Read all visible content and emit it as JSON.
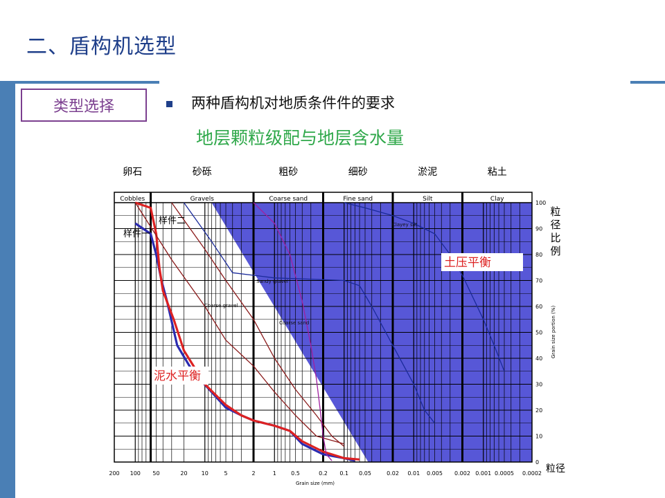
{
  "title": "二、盾构机选型",
  "type_box_label": "类型选择",
  "requirement_text": "两种盾构机对地质条件件的要求",
  "subtitle": "地层颗粒级配与地层含水量",
  "colors": {
    "accent_blue": "#4a7fb5",
    "title_blue": "#1f3f8a",
    "subtitle_green": "#2fa84a",
    "box_purple": "#7b3f8f",
    "epb_fill": "#3a3ad0"
  },
  "chart_data": {
    "type": "line",
    "categories_cn": [
      "卵石",
      "砂砾",
      "粗砂",
      "细砂",
      "淤泥",
      "粘土"
    ],
    "categories_en": [
      "Cobbles",
      "Gravels",
      "Coarse sand",
      "Fine sand",
      "Silt",
      "Clay"
    ],
    "x_ticks": [
      "200",
      "100",
      "50",
      "20",
      "10",
      "5",
      "2",
      "1",
      "0.5",
      "0.2",
      "0.1",
      "0.05",
      "0.02",
      "0.01",
      "0.005",
      "0.002",
      "0.001",
      "0.0005",
      "0.0002"
    ],
    "xlabel": "Grain size (mm)",
    "xlabel_cn": "粒径",
    "x_scale": "log",
    "y_ticks": [
      "0",
      "10",
      "20",
      "30",
      "40",
      "50",
      "60",
      "70",
      "80",
      "90",
      "100"
    ],
    "ylabel": "Grain size portion (%)",
    "ylabel_cn": "粒径比例",
    "ylim": [
      0,
      100
    ],
    "grid": true,
    "region_labels": {
      "epb": "土压平衡",
      "slurry": "泥水平衡"
    },
    "series": [
      {
        "name": "样件一",
        "color": "#2b2bb0",
        "points": [
          [
            100,
            92
          ],
          [
            60,
            88
          ],
          [
            50,
            80
          ],
          [
            42,
            70
          ],
          [
            35,
            62
          ],
          [
            25,
            45
          ],
          [
            15,
            35
          ],
          [
            8,
            27
          ],
          [
            5,
            21
          ],
          [
            3,
            18
          ],
          [
            2,
            16
          ],
          [
            1,
            14
          ],
          [
            0.6,
            12
          ],
          [
            0.4,
            7
          ],
          [
            0.2,
            3
          ],
          [
            0.1,
            1.5
          ],
          [
            0.07,
            0.5
          ]
        ]
      },
      {
        "name": "样件二",
        "color": "#dd2222",
        "points": [
          [
            100,
            100
          ],
          [
            60,
            98
          ],
          [
            50,
            88
          ],
          [
            45,
            75
          ],
          [
            40,
            66
          ],
          [
            28,
            55
          ],
          [
            20,
            43
          ],
          [
            10,
            30
          ],
          [
            5,
            22
          ],
          [
            3,
            18
          ],
          [
            2,
            16
          ],
          [
            1,
            14
          ],
          [
            0.6,
            12
          ],
          [
            0.4,
            8
          ],
          [
            0.2,
            4
          ],
          [
            0.1,
            1.5
          ],
          [
            0.06,
            1
          ]
        ]
      },
      {
        "name": "",
        "color": "#8a1a1a",
        "points": [
          [
            100,
            100
          ],
          [
            30,
            78
          ],
          [
            10,
            60
          ],
          [
            5,
            47
          ],
          [
            2,
            37
          ],
          [
            1,
            27
          ],
          [
            0.5,
            18
          ],
          [
            0.25,
            10
          ],
          [
            0.1,
            7
          ]
        ]
      },
      {
        "name": "",
        "color": "#8a1a1a",
        "points": [
          [
            30,
            100
          ],
          [
            10,
            82
          ],
          [
            5,
            70
          ],
          [
            2,
            55
          ],
          [
            1,
            40
          ],
          [
            0.5,
            28
          ],
          [
            0.25,
            18
          ],
          [
            0.15,
            10
          ],
          [
            0.1,
            6
          ]
        ]
      },
      {
        "name": "",
        "color": "#a020a0",
        "points": [
          [
            2,
            100
          ],
          [
            1,
            92
          ],
          [
            0.6,
            80
          ],
          [
            0.4,
            62
          ],
          [
            0.3,
            45
          ],
          [
            0.25,
            32
          ],
          [
            0.22,
            20
          ],
          [
            0.2,
            10
          ],
          [
            0.18,
            3
          ],
          [
            0.15,
            0.5
          ]
        ]
      },
      {
        "name": "",
        "color": "#1a2a9a",
        "points": [
          [
            20,
            100
          ],
          [
            8,
            85
          ],
          [
            4,
            73
          ],
          [
            1,
            71
          ],
          [
            0.3,
            70.5
          ],
          [
            0.1,
            70
          ],
          [
            0.06,
            68
          ],
          [
            0.04,
            60
          ],
          [
            0.02,
            45
          ],
          [
            0.01,
            30
          ],
          [
            0.007,
            20
          ],
          [
            0.005,
            15
          ]
        ]
      },
      {
        "name": "",
        "color": "#1a2a9a",
        "points": [
          [
            0.1,
            100
          ],
          [
            0.05,
            98
          ],
          [
            0.02,
            95
          ],
          [
            0.01,
            92
          ],
          [
            0.005,
            88
          ],
          [
            0.003,
            80
          ],
          [
            0.002,
            72
          ],
          [
            0.001,
            55
          ],
          [
            0.0007,
            45
          ],
          [
            0.0005,
            35
          ]
        ]
      }
    ],
    "annotations": [
      "Clayey silt",
      "Sandy gravel",
      "Coarse gravel",
      "Coarse sand"
    ]
  }
}
